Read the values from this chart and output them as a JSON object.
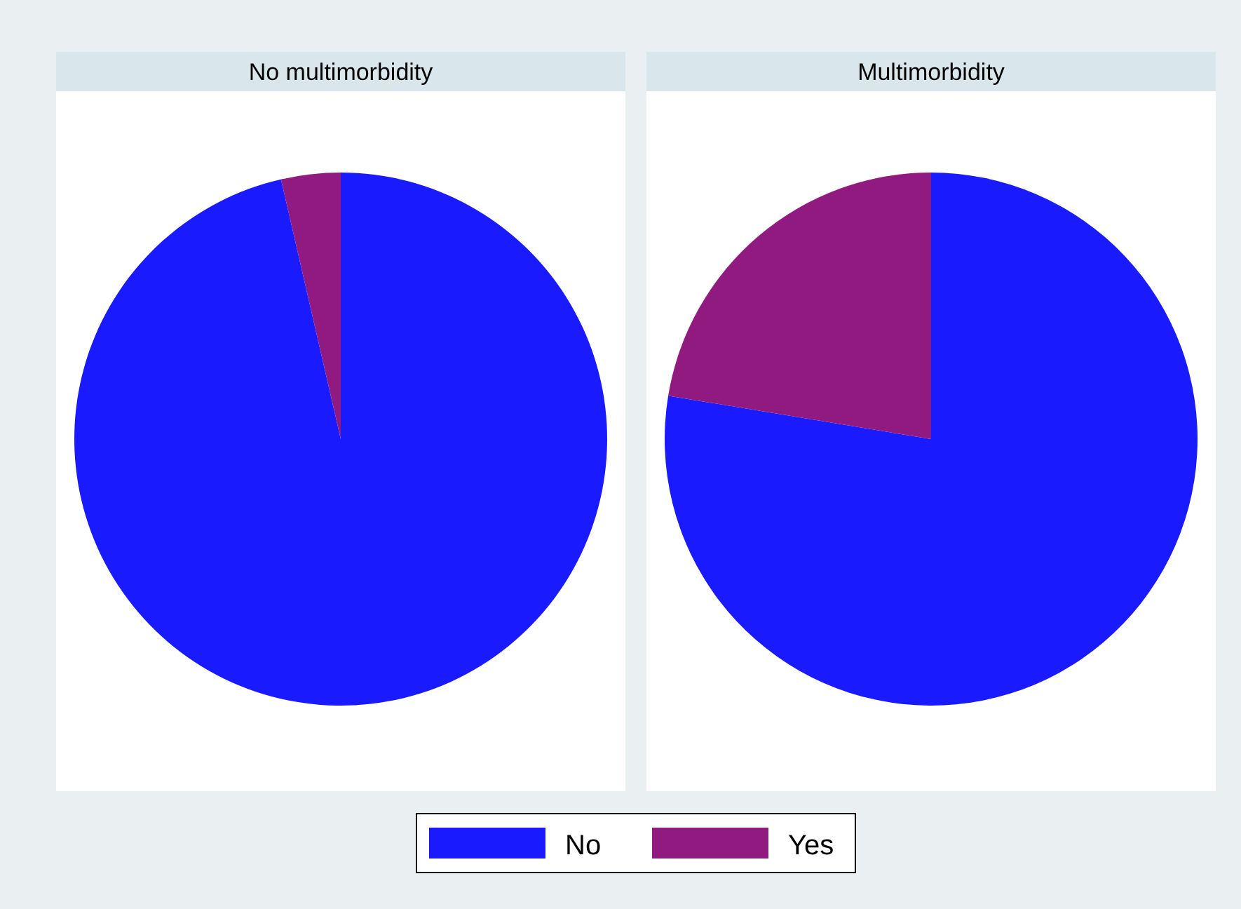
{
  "chart_data": [
    {
      "type": "pie",
      "title": "No multimorbidity",
      "categories": [
        "No",
        "Yes"
      ],
      "values": [
        96.4,
        3.6
      ],
      "colors": [
        "#1a1aff",
        "#901a80"
      ],
      "legend": "bottom"
    },
    {
      "type": "pie",
      "title": "Multimorbidity",
      "categories": [
        null,
        null
      ],
      "values": [
        77.6,
        22.4
      ],
      "colors": [
        "#1a1aff",
        "#901a80"
      ]
    }
  ]
}
